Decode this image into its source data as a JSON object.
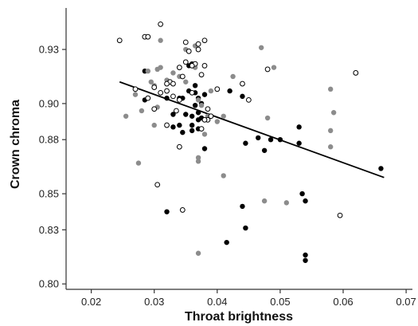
{
  "chart_data": {
    "type": "scatter",
    "xlabel": "Throat brightness",
    "ylabel": "Crown chroma",
    "xlim": [
      0.016,
      0.071
    ],
    "ylim": [
      0.797,
      0.953
    ],
    "x_ticks": [
      0.02,
      0.03,
      0.04,
      0.05,
      0.06,
      0.07
    ],
    "x_tick_labels": [
      "0.02",
      "0.03",
      "0.04",
      "0.05",
      "0.06",
      "0.07"
    ],
    "y_ticks": [
      0.8,
      0.83,
      0.85,
      0.88,
      0.9,
      0.93
    ],
    "y_tick_labels": [
      "0.80",
      "0.83",
      "0.85",
      "0.88",
      "0.90",
      "0.93"
    ],
    "grid": false,
    "legend": "none",
    "colors": {
      "black": "#000000",
      "gray": "#8c8c8c",
      "open": "#000000",
      "axis": "#333333",
      "trend": "#000000"
    },
    "trend_line": {
      "x": [
        0.0245,
        0.0665
      ],
      "y": [
        0.912,
        0.859
      ]
    },
    "series": [
      {
        "style": "black",
        "x": [
          0.0285,
          0.0285,
          0.032,
          0.033,
          0.0355,
          0.036,
          0.0365,
          0.037,
          0.0375,
          0.038,
          0.034,
          0.035,
          0.036,
          0.0365,
          0.037,
          0.0375,
          0.033,
          0.034,
          0.0345,
          0.036,
          0.037,
          0.038,
          0.042,
          0.044,
          0.0445,
          0.0465,
          0.0475,
          0.0485,
          0.05,
          0.053,
          0.053,
          0.0535,
          0.054,
          0.054,
          0.032,
          0.044,
          0.0445,
          0.0415,
          0.054,
          0.066,
          0.0355,
          0.0365,
          0.037,
          0.0345,
          0.036
        ],
        "y": [
          0.918,
          0.902,
          0.903,
          0.894,
          0.921,
          0.922,
          0.906,
          0.903,
          0.9,
          0.905,
          0.903,
          0.894,
          0.893,
          0.899,
          0.895,
          0.892,
          0.887,
          0.888,
          0.884,
          0.885,
          0.886,
          0.875,
          0.907,
          0.904,
          0.878,
          0.881,
          0.874,
          0.88,
          0.88,
          0.887,
          0.878,
          0.85,
          0.846,
          0.816,
          0.84,
          0.843,
          0.831,
          0.823,
          0.813,
          0.864,
          0.907,
          0.91,
          0.891,
          0.903,
          0.888
        ]
      },
      {
        "style": "gray",
        "x": [
          0.0255,
          0.0275,
          0.028,
          0.029,
          0.03,
          0.0305,
          0.031,
          0.031,
          0.032,
          0.033,
          0.034,
          0.035,
          0.035,
          0.0365,
          0.037,
          0.0375,
          0.038,
          0.0385,
          0.039,
          0.04,
          0.041,
          0.0425,
          0.047,
          0.048,
          0.049,
          0.0475,
          0.051,
          0.058,
          0.058,
          0.0585,
          0.058,
          0.037,
          0.037,
          0.037,
          0.0365,
          0.027,
          0.0295,
          0.03,
          0.0305,
          0.041
        ],
        "y": [
          0.893,
          0.867,
          0.896,
          0.918,
          0.888,
          0.898,
          0.935,
          0.92,
          0.913,
          0.917,
          0.915,
          0.912,
          0.93,
          0.92,
          0.902,
          0.899,
          0.883,
          0.893,
          0.907,
          0.89,
          0.86,
          0.915,
          0.931,
          0.892,
          0.92,
          0.846,
          0.845,
          0.876,
          0.908,
          0.895,
          0.885,
          0.868,
          0.817,
          0.87,
          0.932,
          0.905,
          0.912,
          0.91,
          0.919,
          0.893
        ]
      },
      {
        "style": "open",
        "x": [
          0.0245,
          0.0285,
          0.029,
          0.03,
          0.031,
          0.032,
          0.0325,
          0.033,
          0.0335,
          0.034,
          0.0345,
          0.035,
          0.0355,
          0.036,
          0.0365,
          0.037,
          0.0375,
          0.038,
          0.0385,
          0.027,
          0.029,
          0.03,
          0.031,
          0.032,
          0.033,
          0.034,
          0.035,
          0.036,
          0.037,
          0.038,
          0.039,
          0.04,
          0.044,
          0.045,
          0.048,
          0.062,
          0.0595,
          0.0345,
          0.0305,
          0.034,
          0.038,
          0.0385,
          0.0375,
          0.032
        ],
        "y": [
          0.935,
          0.937,
          0.937,
          0.897,
          0.944,
          0.907,
          0.912,
          0.904,
          0.896,
          0.92,
          0.915,
          0.923,
          0.929,
          0.906,
          0.922,
          0.93,
          0.916,
          0.935,
          0.891,
          0.908,
          0.903,
          0.909,
          0.906,
          0.911,
          0.911,
          0.902,
          0.934,
          0.921,
          0.933,
          0.921,
          0.893,
          0.908,
          0.911,
          0.902,
          0.919,
          0.917,
          0.838,
          0.841,
          0.855,
          0.876,
          0.891,
          0.897,
          0.886,
          0.888
        ]
      }
    ]
  }
}
